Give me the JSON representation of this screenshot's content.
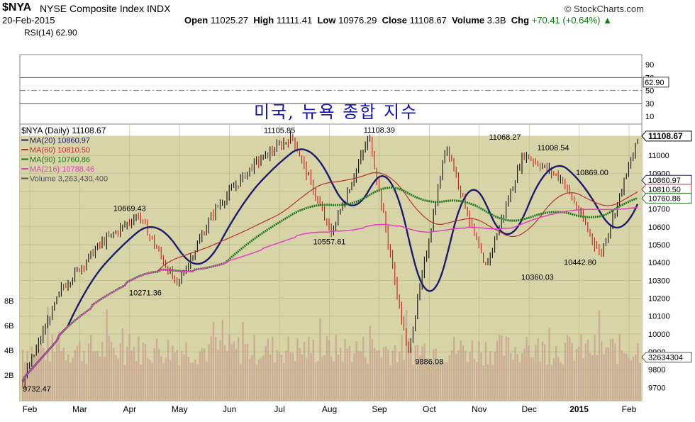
{
  "header": {
    "symbol": "$NYA",
    "description": "NYSE Composite Index INDX",
    "date": "20-Feb-2015",
    "open_label": "Open",
    "open_value": "11025.27",
    "high_label": "High",
    "high_value": "11111.41",
    "low_label": "Low",
    "low_value": "10976.29",
    "close_label": "Close",
    "close_value": "11108.67",
    "volume_label": "Volume",
    "volume_value": "3.3B",
    "chg_label": "Chg",
    "chg_value": "+70.41 (+0.64%)",
    "credit": "© StockCharts.com"
  },
  "annotation": "미국, 뉴욕 종합 지수",
  "rsi": {
    "legend": "RSI(14) 62.90",
    "current_label": "62.90",
    "ticks": [
      "90",
      "70",
      "50",
      "30",
      "10"
    ]
  },
  "legend": {
    "main": "$NYA (Daily) 11108.67",
    "ma20": "MA(20) 10860.97",
    "ma60": "MA(60) 10810.50",
    "ma90": "MA(90) 10760.86",
    "ma216": "MA(216) 10788.46",
    "volume": "Volume 3,263,430,400"
  },
  "colors": {
    "plot_bg": "#d7d4a8",
    "up": "#111111",
    "down": "#c81e1e",
    "ma20": "#1c1c6e",
    "ma60": "#b83232",
    "ma90": "#1e7a1e",
    "ma216": "#e040c0",
    "volume": "#c8a090"
  },
  "chart_data": {
    "type": "line",
    "x_ticks": [
      "Feb",
      "Mar",
      "Apr",
      "May",
      "Jun",
      "Jul",
      "Aug",
      "Sep",
      "Oct",
      "Nov",
      "Dec",
      "2015",
      "Feb"
    ],
    "y_ticks": [
      "11000",
      "10900",
      "10800",
      "10700",
      "10600",
      "10500",
      "10400",
      "10300",
      "10200",
      "10100",
      "10000",
      "9900",
      "9800",
      "9700"
    ],
    "volume_ticks": [
      "8B",
      "6B",
      "4B",
      "2B"
    ],
    "ylim": [
      9650,
      11120
    ],
    "price_labels": [
      {
        "label": "10669.43",
        "x": "Apr",
        "y": 10669.43
      },
      {
        "label": "10271.36",
        "x": "Apr",
        "y": 10271.36
      },
      {
        "label": "11105.85",
        "x": "Jul",
        "y": 11105.85
      },
      {
        "label": "10557.61",
        "x": "Aug",
        "y": 10557.61
      },
      {
        "label": "11108.39",
        "x": "Sep",
        "y": 11108.39
      },
      {
        "label": "9886.08",
        "x": "Oct",
        "y": 9886.08
      },
      {
        "label": "11068.27",
        "x": "Nov",
        "y": 11068.27
      },
      {
        "label": "11008.54",
        "x": "Dec",
        "y": 11008.54
      },
      {
        "label": "10360.03",
        "x": "Dec",
        "y": 10360.03
      },
      {
        "label": "10869.00",
        "x": "2015",
        "y": 10869.0
      },
      {
        "label": "10442.80",
        "x": "2015",
        "y": 10442.8
      },
      {
        "label": "9732.47",
        "x": "Feb",
        "y": 9732.47
      }
    ],
    "last_values": [
      {
        "label": "11108.67",
        "y": 11108.67
      },
      {
        "label": "10860.97",
        "y": 10860.97
      },
      {
        "label": "10810.50",
        "y": 10810.5
      },
      {
        "label": "10760.86",
        "y": 10760.86
      },
      {
        "label": "32634304",
        "y": 9870
      }
    ],
    "price_path": [
      [
        "Feb",
        9732
      ],
      [
        "Feb",
        10250
      ],
      [
        "Mar",
        10500
      ],
      [
        "Apr",
        10669
      ],
      [
        "Apr",
        10271
      ],
      [
        "May",
        10700
      ],
      [
        "Jun",
        10950
      ],
      [
        "Jul",
        11106
      ],
      [
        "Aug",
        10558
      ],
      [
        "Sep",
        11108
      ],
      [
        "Oct",
        9886
      ],
      [
        "Nov",
        11068
      ],
      [
        "Dec",
        10360
      ],
      [
        "Dec",
        11009
      ],
      [
        "2015",
        10869
      ],
      [
        "2015",
        10443
      ],
      [
        "Feb",
        11109
      ]
    ]
  }
}
